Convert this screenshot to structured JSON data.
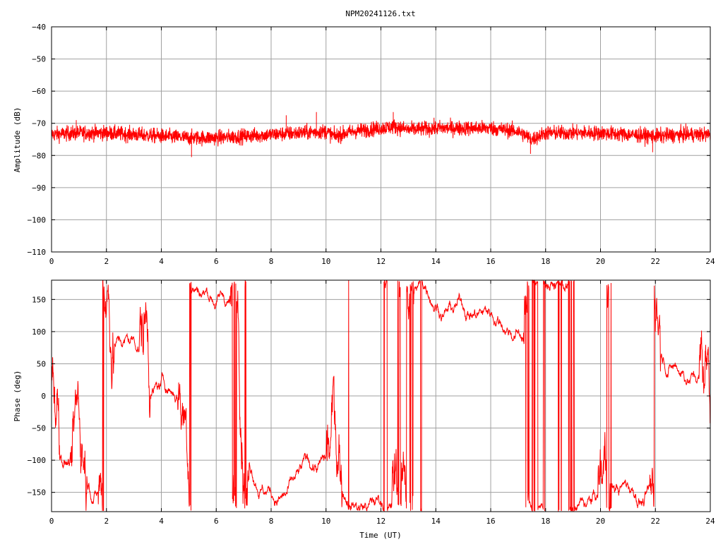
{
  "title": "NPM20241126.txt",
  "trace_color": "#ff0000",
  "chart_data": [
    {
      "type": "line",
      "xlabel": "",
      "ylabel": "Amplitude (dB)",
      "xlim": [
        0,
        24
      ],
      "ylim": [
        -110,
        -40
      ],
      "x_ticks": [
        0,
        2,
        4,
        6,
        8,
        10,
        12,
        14,
        16,
        18,
        20,
        22,
        24
      ],
      "y_ticks": [
        -110,
        -100,
        -90,
        -80,
        -70,
        -60,
        -50,
        -40
      ],
      "series": [
        {
          "baseline_x": [
            0,
            1,
            2,
            3,
            4,
            5,
            6,
            7,
            8,
            9,
            10,
            10.3,
            11,
            12,
            12.5,
            13,
            14,
            15,
            16,
            17,
            17.5,
            18,
            19,
            20,
            21,
            22,
            23,
            24
          ],
          "baseline_y": [
            -73.5,
            -73,
            -73,
            -73.5,
            -74,
            -74.5,
            -74.5,
            -74,
            -73.5,
            -73,
            -72.5,
            -74,
            -72.5,
            -71.5,
            -71,
            -72,
            -71.5,
            -71.5,
            -71.5,
            -72.5,
            -75,
            -73,
            -73,
            -73,
            -73.5,
            -74,
            -73.5,
            -73.5
          ],
          "band_halfwidth_db": 2.5,
          "spikes": [
            [
              0.9,
              -69
            ],
            [
              8.55,
              -67.5
            ],
            [
              9.65,
              -66.5
            ],
            [
              12.45,
              -66.5
            ],
            [
              17.45,
              -79.5
            ],
            [
              5.1,
              -80.5
            ],
            [
              21.9,
              -79
            ]
          ]
        }
      ]
    },
    {
      "type": "line",
      "xlabel": "Time (UT)",
      "ylabel": "Phase (deg)",
      "xlim": [
        0,
        24
      ],
      "ylim": [
        -180,
        180
      ],
      "x_ticks": [
        0,
        2,
        4,
        6,
        8,
        10,
        12,
        14,
        16,
        18,
        20,
        22,
        24
      ],
      "y_ticks": [
        -150,
        -100,
        -50,
        0,
        50,
        100,
        150
      ],
      "series": [
        {
          "wrap_range": [
            -180,
            180
          ],
          "dense_wrap_intervals": [
            [
              0.0,
              0.3
            ],
            [
              0.7,
              1.3
            ],
            [
              1.7,
              2.3
            ],
            [
              3.2,
              3.6
            ],
            [
              4.6,
              5.1
            ],
            [
              6.5,
              7.2
            ],
            [
              10.0,
              10.6
            ],
            [
              12.4,
              13.2
            ],
            [
              17.2,
              17.4
            ],
            [
              19.9,
              20.4
            ],
            [
              21.8,
              22.2
            ],
            [
              23.6,
              24.0
            ]
          ]
        }
      ]
    }
  ]
}
